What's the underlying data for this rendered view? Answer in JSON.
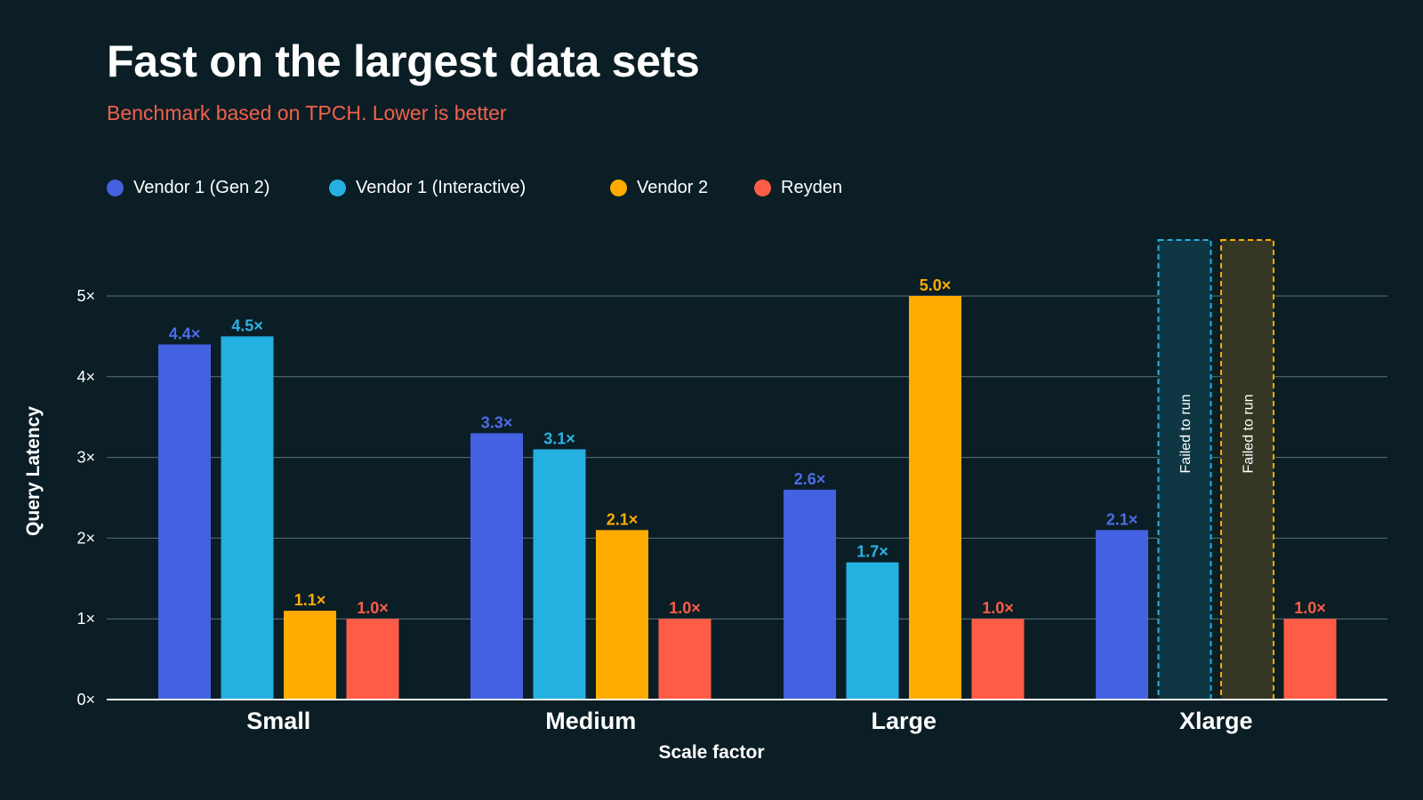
{
  "chart_data": {
    "type": "bar",
    "title": "Fast on the largest data sets",
    "subtitle": "Benchmark based on TPCH. Lower is better",
    "xlabel": "Scale factor",
    "ylabel": "Query Latency",
    "ylim": [
      0,
      5
    ],
    "yticks": [
      "0×",
      "1×",
      "2×",
      "3×",
      "4×",
      "5×"
    ],
    "grid": true,
    "legend_position": "top-left",
    "categories": [
      "Small",
      "Medium",
      "Large",
      "Xlarge"
    ],
    "failed_label": "Failed to run",
    "series": [
      {
        "name": "Vendor 1 (Gen 2)",
        "color": "#4361e0",
        "values": [
          4.4,
          3.3,
          2.6,
          2.1
        ],
        "labels": [
          "4.4×",
          "3.3×",
          "2.6×",
          "2.1×"
        ]
      },
      {
        "name": "Vendor 1 (Interactive)",
        "color": "#25b0e2",
        "values": [
          4.5,
          3.1,
          1.7,
          null
        ],
        "labels": [
          "4.5×",
          "3.1×",
          "1.7×",
          ""
        ]
      },
      {
        "name": "Vendor 2",
        "color": "#ffab00",
        "values": [
          1.1,
          2.1,
          5.0,
          null
        ],
        "labels": [
          "1.1×",
          "2.1×",
          "5.0×",
          ""
        ]
      },
      {
        "name": "Reyden",
        "color": "#ff5c47",
        "values": [
          1.0,
          1.0,
          1.0,
          1.0
        ],
        "labels": [
          "1.0×",
          "1.0×",
          "1.0×",
          "1.0×"
        ]
      }
    ]
  }
}
